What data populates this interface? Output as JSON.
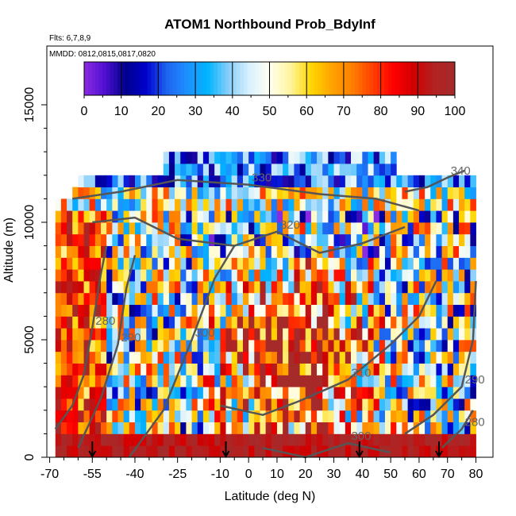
{
  "chart_data": {
    "type": "heatmap",
    "title": "ATOM1 Northbound Prob_BdyInf",
    "annotations": {
      "flights": "Flts: 6,7,8,9",
      "dates": "MMDD: 0812,0815,0817,0820"
    },
    "xlabel": "Latitude (deg N)",
    "ylabel": "Altitude (m)",
    "xlim": [
      -71,
      86
    ],
    "ylim": [
      0,
      17500
    ],
    "xticks": [
      -70,
      -55,
      -40,
      -25,
      -10,
      0,
      10,
      20,
      30,
      40,
      50,
      60,
      70,
      80
    ],
    "yticks": [
      0,
      5000,
      10000,
      15000
    ],
    "colorbar": {
      "min": 0,
      "max": 100,
      "ticks": [
        0,
        10,
        20,
        30,
        40,
        50,
        60,
        70,
        80,
        90,
        100
      ],
      "palette": [
        "#8a2be2",
        "#5010d0",
        "#00008b",
        "#0000cd",
        "#1e64f0",
        "#1e90ff",
        "#00b4ff",
        "#87cefa",
        "#d8f0ff",
        "#fffff0",
        "#fff5a0",
        "#ffd700",
        "#ffa500",
        "#ff7f00",
        "#ff4000",
        "#ff0000",
        "#d00000",
        "#b22222",
        "#a52a2a"
      ]
    },
    "series_field": {
      "lat_start": -68,
      "lat_end": 80,
      "lat_step": 2,
      "alt_bins_m": [
        0,
        500,
        1000,
        1500,
        2000,
        2500,
        3000,
        3500,
        4000,
        4500,
        5000,
        5500,
        6000,
        6500,
        7000,
        7500,
        8000,
        8500,
        9000,
        9500,
        10000,
        10500,
        11000,
        11500,
        12000,
        12500,
        13000
      ]
    },
    "contours": [
      {
        "label": "280",
        "points": [
          [
            -68,
            1200
          ],
          [
            -62,
            2200
          ],
          [
            -58,
            3500
          ],
          [
            -55,
            5500
          ],
          [
            -52,
            7800
          ],
          [
            -50,
            9000
          ]
        ]
      },
      {
        "label": "290",
        "points": [
          [
            -60,
            400
          ],
          [
            -52,
            2500
          ],
          [
            -46,
            4800
          ],
          [
            -43,
            7200
          ],
          [
            -40,
            8600
          ]
        ]
      },
      {
        "label": "300",
        "points": [
          [
            -42,
            0
          ],
          [
            -30,
            2000
          ],
          [
            -20,
            5000
          ],
          [
            -12,
            7600
          ],
          [
            -5,
            9000
          ]
        ]
      },
      {
        "label": "310",
        "points": [
          [
            -10,
            2200
          ],
          [
            5,
            1800
          ],
          [
            18,
            2400
          ],
          [
            35,
            3300
          ],
          [
            50,
            4800
          ],
          [
            60,
            6000
          ],
          [
            66,
            7500
          ]
        ]
      },
      {
        "label": "320",
        "points": [
          [
            -55,
            10000
          ],
          [
            -40,
            10200
          ],
          [
            -25,
            9300
          ],
          [
            -5,
            9000
          ],
          [
            10,
            9600
          ],
          [
            25,
            8700
          ],
          [
            40,
            9100
          ],
          [
            55,
            9800
          ]
        ]
      },
      {
        "label": "330",
        "points": [
          [
            -62,
            11000
          ],
          [
            -45,
            11300
          ],
          [
            -25,
            11800
          ],
          [
            0,
            11600
          ],
          [
            25,
            11200
          ],
          [
            45,
            11000
          ],
          [
            60,
            10500
          ]
        ]
      },
      {
        "label": "340",
        "points": [
          [
            55,
            11300
          ],
          [
            63,
            11500
          ],
          [
            70,
            11900
          ],
          [
            76,
            12200
          ]
        ]
      },
      {
        "label": "300",
        "points": [
          [
            5,
            400
          ],
          [
            20,
            0
          ],
          [
            35,
            600
          ],
          [
            50,
            200
          ]
        ]
      },
      {
        "label": "290",
        "points": [
          [
            55,
            1000
          ],
          [
            65,
            1800
          ],
          [
            75,
            3000
          ],
          [
            79,
            5000
          ],
          [
            80,
            7500
          ]
        ]
      },
      {
        "label": "280",
        "points": [
          [
            68,
            400
          ],
          [
            75,
            1200
          ],
          [
            79,
            2000
          ]
        ]
      }
    ],
    "flight_markers_lat": [
      -55,
      -8,
      39,
      67
    ]
  }
}
